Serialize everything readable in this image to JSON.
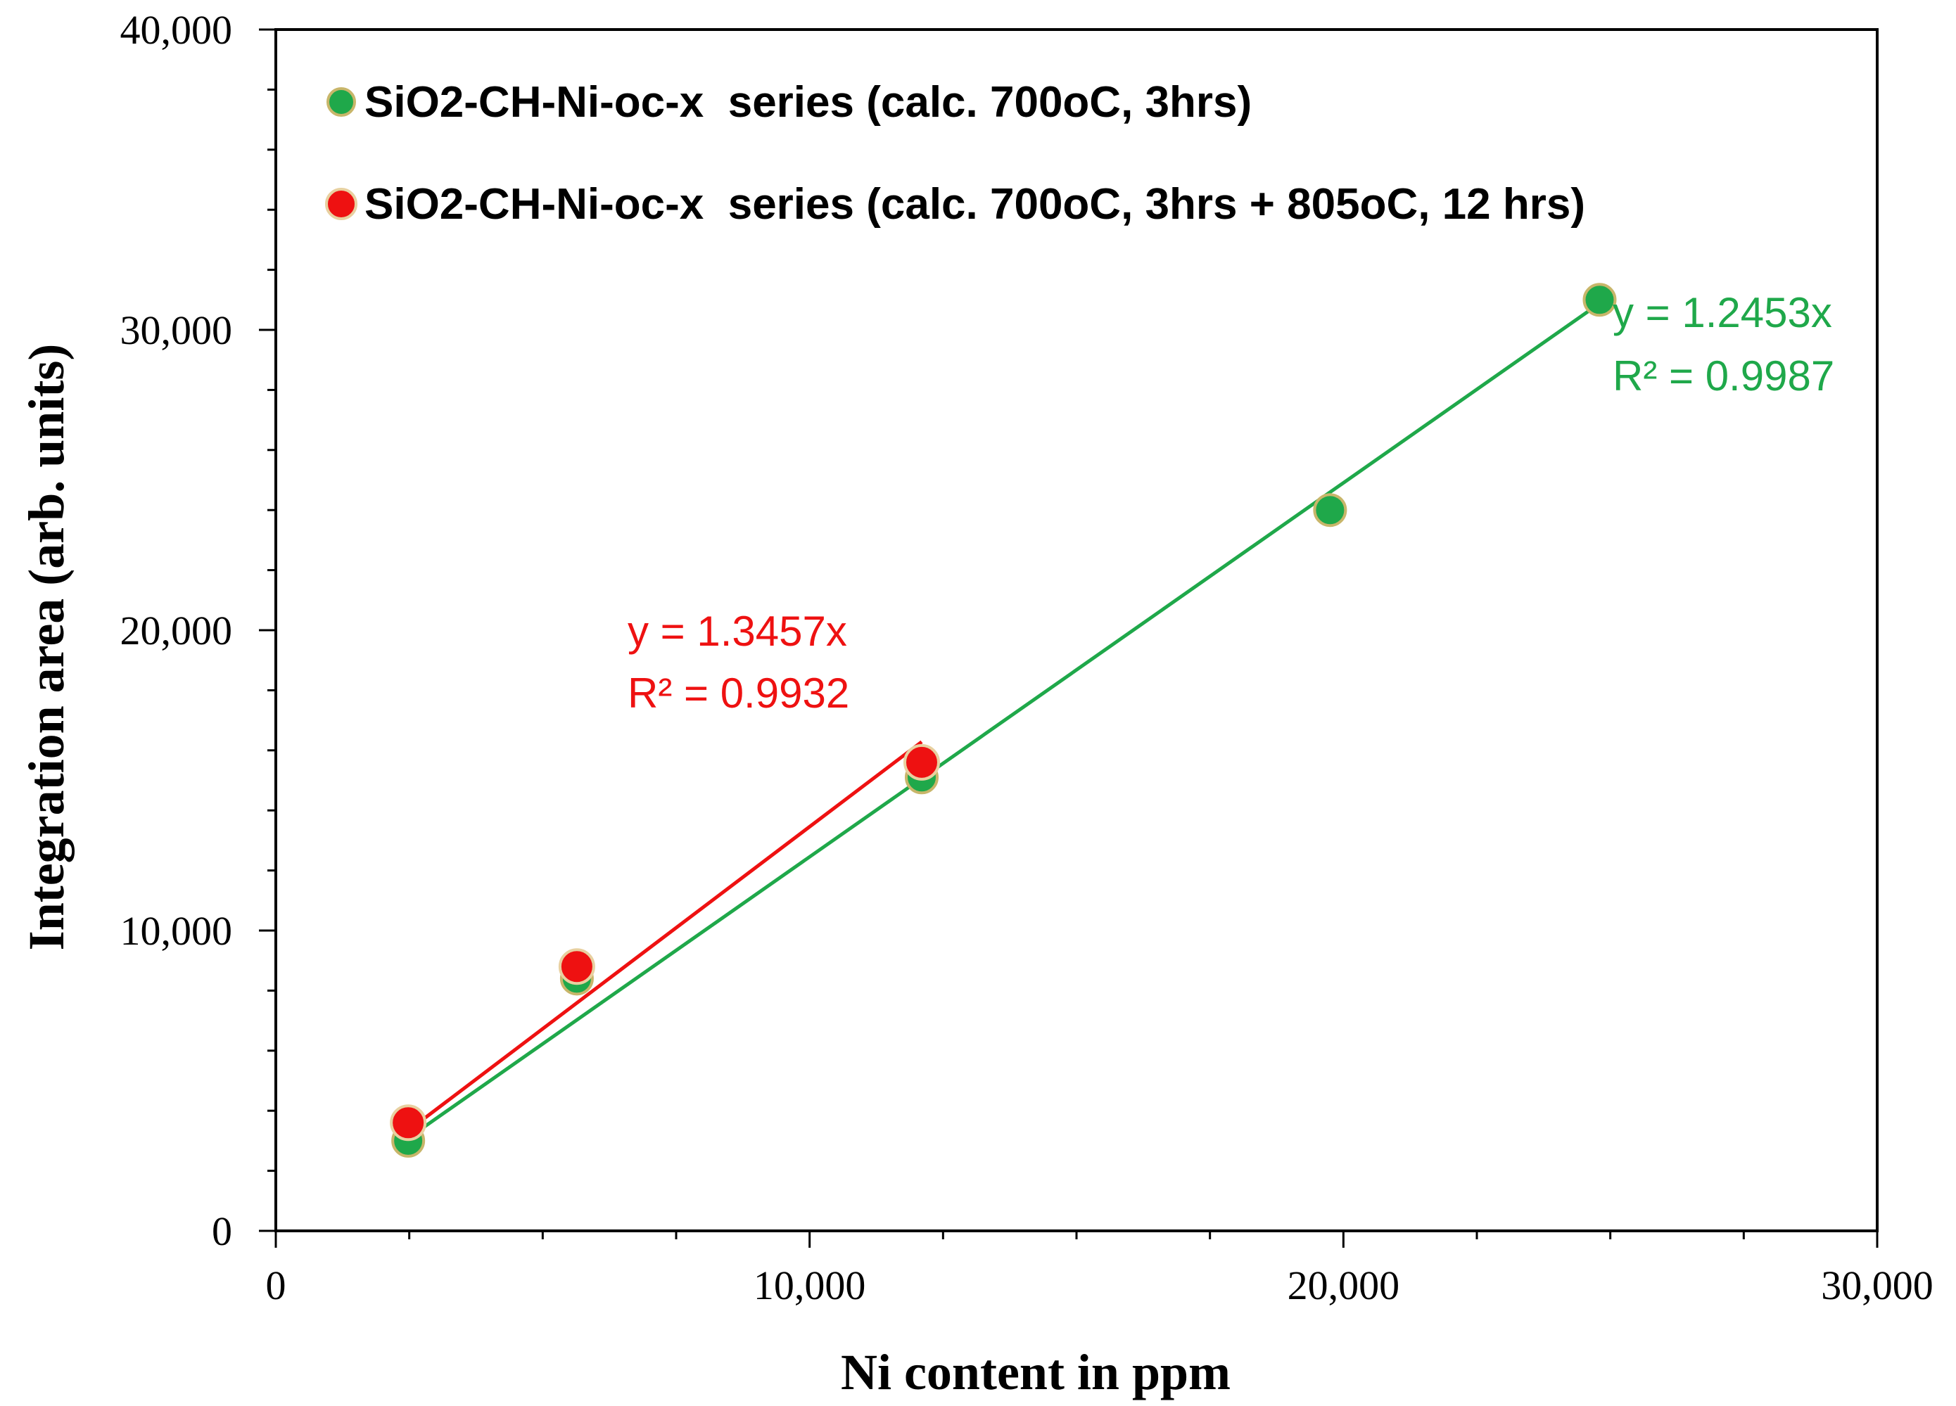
{
  "chart_data": {
    "type": "scatter",
    "xlabel": "Ni content in ppm",
    "ylabel": "Integration area (arb. units)",
    "xlim": [
      0,
      30000
    ],
    "ylim": [
      0,
      40000
    ],
    "x_ticks": [
      0,
      10000,
      20000,
      30000
    ],
    "y_ticks": [
      0,
      10000,
      20000,
      30000,
      40000
    ],
    "x_tick_labels": [
      "0",
      "10,000",
      "20,000",
      "30,000"
    ],
    "y_tick_labels": [
      "0",
      "10,000",
      "20,000",
      "30,000",
      "40,000"
    ],
    "x_minor_step": 2500,
    "y_minor_step": 2000,
    "grid": false,
    "legend_position": "top-left",
    "series": [
      {
        "name": "SiO2-CH-Ni-oc-x  series (calc. 700oC, 3hrs)",
        "color": "#1fa84a",
        "edge_color": "#c8b66a",
        "x": [
          2480,
          5640,
          12100,
          19750,
          24800
        ],
        "y": [
          3000,
          8400,
          15100,
          24000,
          31000
        ],
        "trendline": {
          "slope": 1.2453,
          "x_range": [
            2480,
            24800
          ],
          "equation": "y = 1.2453x",
          "r2": "R² = 0.9987"
        }
      },
      {
        "name": "SiO2-CH-Ni-oc-x  series (calc. 700oC, 3hrs + 805oC, 12 hrs)",
        "color": "#ee1111",
        "edge_color": "#e8d0a0",
        "x": [
          2480,
          5640,
          12100
        ],
        "y": [
          3600,
          8800,
          15600
        ],
        "trendline": {
          "slope": 1.3457,
          "x_range": [
            2480,
            12100
          ],
          "equation": "y = 1.3457x",
          "r2": "R² = 0.9932"
        }
      }
    ]
  }
}
